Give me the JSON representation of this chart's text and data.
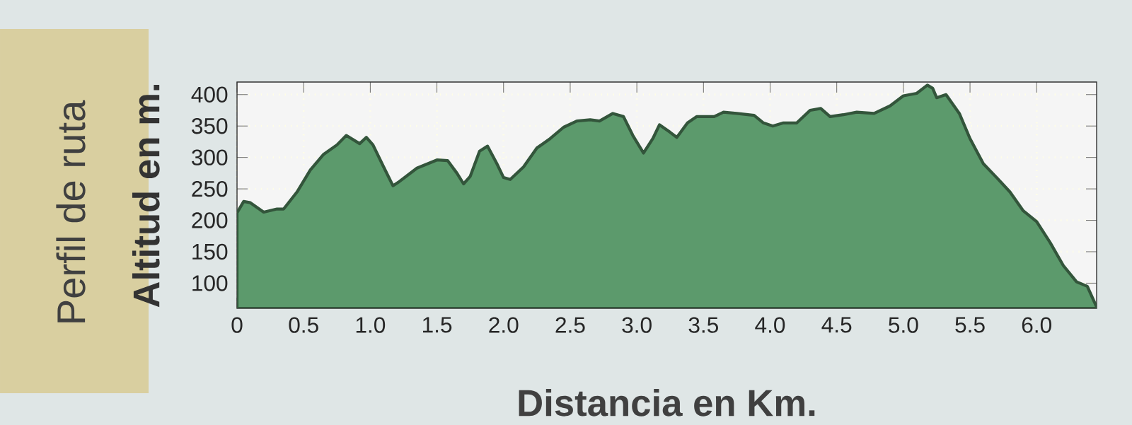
{
  "chart_data": {
    "type": "area",
    "title": "Perfil de ruta",
    "xlabel": "Distancia en Km.",
    "ylabel": "Altitud en m.",
    "color": "#5c9a6c",
    "grid": true,
    "x": [
      0,
      0.05,
      0.1,
      0.2,
      0.3,
      0.35,
      0.45,
      0.55,
      0.65,
      0.75,
      0.82,
      0.92,
      0.97,
      1.02,
      1.1,
      1.17,
      1.22,
      1.35,
      1.5,
      1.58,
      1.65,
      1.7,
      1.75,
      1.82,
      1.88,
      1.95,
      2.0,
      2.05,
      2.15,
      2.25,
      2.35,
      2.45,
      2.55,
      2.65,
      2.72,
      2.82,
      2.9,
      2.97,
      3.05,
      3.12,
      3.17,
      3.25,
      3.3,
      3.38,
      3.45,
      3.58,
      3.65,
      3.75,
      3.88,
      3.95,
      4.02,
      4.1,
      4.2,
      4.3,
      4.38,
      4.45,
      4.55,
      4.65,
      4.78,
      4.9,
      5.0,
      5.1,
      5.18,
      5.22,
      5.25,
      5.32,
      5.42,
      5.5,
      5.6,
      5.7,
      5.8,
      5.9,
      6.0,
      6.1,
      6.2,
      6.3,
      6.38,
      6.45
    ],
    "values": [
      212,
      230,
      228,
      213,
      218,
      218,
      245,
      280,
      305,
      320,
      335,
      322,
      332,
      320,
      285,
      255,
      262,
      283,
      296,
      295,
      275,
      258,
      270,
      310,
      318,
      290,
      268,
      265,
      285,
      315,
      330,
      348,
      358,
      360,
      358,
      370,
      365,
      335,
      307,
      330,
      352,
      340,
      332,
      355,
      365,
      365,
      372,
      370,
      367,
      355,
      350,
      355,
      355,
      375,
      378,
      365,
      368,
      372,
      370,
      382,
      398,
      402,
      415,
      410,
      395,
      400,
      370,
      330,
      290,
      268,
      245,
      215,
      198,
      165,
      128,
      102,
      95,
      62
    ],
    "xlim": [
      0,
      6.45
    ],
    "ylim": [
      60,
      420
    ],
    "xticks": [
      0,
      0.5,
      {
        "value": 1,
        "label": "1.0"
      },
      1.5,
      {
        "value": 2,
        "label": "2.0"
      },
      2.5,
      {
        "value": 3,
        "label": "3.0"
      },
      3.5,
      {
        "value": 4,
        "label": "4.0"
      },
      4.5,
      {
        "value": 5,
        "label": "5.0"
      },
      5.5,
      {
        "value": 6,
        "label": "6.0"
      }
    ],
    "yticks": [
      100,
      150,
      200,
      250,
      300,
      350,
      400
    ]
  }
}
